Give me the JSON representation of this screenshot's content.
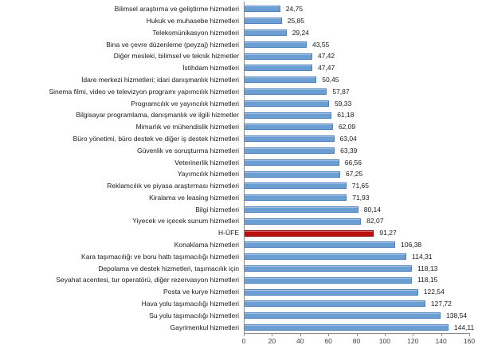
{
  "chart_data": {
    "type": "bar",
    "orientation": "horizontal",
    "title": "",
    "xlabel": "",
    "ylabel": "",
    "xlim": [
      0,
      160
    ],
    "x_ticks": [
      0,
      20,
      40,
      60,
      80,
      100,
      120,
      140,
      160
    ],
    "grid": false,
    "decimal_separator": ",",
    "bar_color": "#6b9fd4",
    "bar_border_color": "#4f81bd",
    "highlight_color": "#bb0f10",
    "highlight_border_color": "#8c0000",
    "axis_color": "#8c8c8c",
    "highlight_category": "H-ÜFE",
    "categories": [
      "Bilimsel araştırma ve geliştirme hizmetleri",
      "Hukuk ve muhasebe hizmetleri",
      "Telekomünikasyon hizmetleri",
      "Bina ve çevre düzenleme (peyzaj) hizmetleri",
      "Diğer mesleki, bilimsel ve teknik hizmetler",
      "İstihdam hizmetleri",
      "İdare merkezi hizmetleri; idari danışmanlık hizmetleri",
      "Sinema filmi, video ve televizyon programı yapımcılık hizmetleri",
      "Programcılık ve yayıncılık hizmetleri",
      "Bilgisayar programlama, danışmanlık ve ilgili hizmetler",
      "Mimarlık ve mühendislik hizmetleri",
      "Büro yönetimi, büro destek ve diğer iş destek hizmetleri",
      "Güvenlik ve soruşturma hizmetleri",
      "Veterinerlik hizmetleri",
      "Yayımcılık hizmetleri",
      "Reklamcılık ve piyasa araştırması hizmetleri",
      "Kiralama ve leasing hizmetleri",
      "Bilgi hizmetleri",
      "Yiyecek ve içecek sunum hizmetleri",
      "H-ÜFE",
      "Konaklama hizmetleri",
      "Kara taşımacılığı ve boru hattı taşımacılığı hizmetleri",
      "Depolama ve destek hizmetleri, taşımacılık için",
      "Seyahat acentesi, tur operatörü, diğer rezervasyon hizmetleri",
      "Posta ve kurye hizmetleri",
      "Hava yolu taşımacılığı hizmetleri",
      "Su yolu taşımacılığı hizmetleri",
      "Gayrimenkul hizmetleri"
    ],
    "values": [
      24.75,
      25.85,
      29.24,
      43.55,
      47.42,
      47.47,
      50.45,
      57.87,
      59.33,
      61.18,
      62.09,
      63.04,
      63.39,
      66.56,
      67.25,
      71.65,
      71.93,
      80.14,
      82.07,
      91.27,
      106.38,
      114.31,
      118.13,
      118.15,
      122.54,
      127.72,
      138.54,
      144.11
    ],
    "value_labels": [
      "24,75",
      "25,85",
      "29,24",
      "43,55",
      "47,42",
      "47,47",
      "50,45",
      "57,87",
      "59,33",
      "61,18",
      "62,09",
      "63,04",
      "63,39",
      "66,56",
      "67,25",
      "71,65",
      "71,93",
      "80,14",
      "82,07",
      "91,27",
      "106,38",
      "114,31",
      "118,13",
      "118,15",
      "122,54",
      "127,72",
      "138,54",
      "144,11"
    ]
  }
}
